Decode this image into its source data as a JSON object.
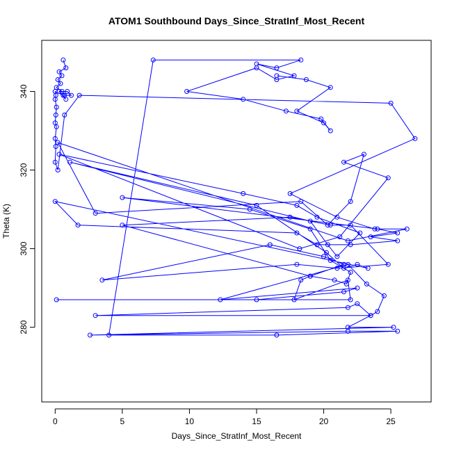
{
  "chart_data": {
    "type": "line",
    "title": "ATOM1 Southbound Days_Since_StratInf_Most_Recent",
    "xlabel": "Days_Since_StratInf_Most_Recent",
    "ylabel": "Theta (K)",
    "xlim": [
      -1,
      28
    ],
    "ylim": [
      261,
      353
    ],
    "xticks": [
      0,
      5,
      10,
      15,
      20,
      25
    ],
    "yticks": [
      280,
      300,
      320,
      340
    ],
    "color": "#0000ff",
    "points": [
      [
        0.6,
        348
      ],
      [
        0.8,
        346
      ],
      [
        0.3,
        345
      ],
      [
        0.5,
        344
      ],
      [
        0.2,
        343
      ],
      [
        0.4,
        342
      ],
      [
        0.1,
        341
      ],
      [
        0.5,
        340
      ],
      [
        0.7,
        339
      ],
      [
        1.2,
        339
      ],
      [
        0.9,
        340
      ],
      [
        0.3,
        340
      ],
      [
        0.8,
        338
      ],
      [
        0.6,
        339
      ],
      [
        0.0,
        340
      ],
      [
        0.05,
        339
      ],
      [
        0.0,
        338
      ],
      [
        0.1,
        336
      ],
      [
        0.05,
        334
      ],
      [
        0.0,
        332
      ],
      [
        0.1,
        331
      ],
      [
        0.0,
        328
      ],
      [
        0.05,
        326
      ],
      [
        0.0,
        322
      ],
      [
        0.2,
        320
      ],
      [
        0.7,
        334
      ],
      [
        1.8,
        339
      ],
      [
        25.0,
        337
      ],
      [
        26.8,
        328
      ],
      [
        17.5,
        314
      ],
      [
        21.0,
        308
      ],
      [
        23.8,
        305
      ],
      [
        26.2,
        305
      ],
      [
        21.8,
        302
      ],
      [
        0.2,
        327
      ],
      [
        3.0,
        309
      ],
      [
        18.3,
        312
      ],
      [
        20.3,
        306
      ],
      [
        22.0,
        312
      ],
      [
        23.0,
        324
      ],
      [
        21.5,
        322
      ],
      [
        24.8,
        318
      ],
      [
        21.2,
        303
      ],
      [
        18.2,
        300
      ],
      [
        0.3,
        324
      ],
      [
        14.0,
        314
      ],
      [
        18.0,
        311
      ],
      [
        19.5,
        308
      ],
      [
        22.7,
        304
      ],
      [
        21.0,
        298
      ],
      [
        20.3,
        301
      ],
      [
        19.0,
        307
      ],
      [
        1.1,
        322
      ],
      [
        15.0,
        311
      ],
      [
        20.2,
        299
      ],
      [
        21.5,
        295
      ],
      [
        22.5,
        296
      ],
      [
        23.3,
        295
      ],
      [
        0.0,
        312
      ],
      [
        1.7,
        306
      ],
      [
        18.0,
        304
      ],
      [
        19.5,
        301
      ],
      [
        22.0,
        301
      ],
      [
        25.5,
        302
      ],
      [
        23.5,
        303
      ],
      [
        25.5,
        304
      ],
      [
        24.0,
        305
      ],
      [
        5.0,
        313
      ],
      [
        14.5,
        310
      ],
      [
        19.0,
        305
      ],
      [
        20.5,
        297
      ],
      [
        22.0,
        294
      ],
      [
        21.7,
        291
      ],
      [
        20.8,
        292
      ],
      [
        19.0,
        293
      ],
      [
        5.0,
        306
      ],
      [
        17.5,
        308
      ],
      [
        20.5,
        306
      ],
      [
        22.0,
        306
      ],
      [
        24.8,
        296
      ],
      [
        21.0,
        295
      ],
      [
        18.0,
        296
      ],
      [
        3.5,
        292
      ],
      [
        16.0,
        301
      ],
      [
        20.0,
        298
      ],
      [
        21.5,
        296
      ],
      [
        19.0,
        293
      ],
      [
        18.3,
        292
      ],
      [
        17.8,
        287
      ],
      [
        21.8,
        292
      ],
      [
        22.0,
        287
      ],
      [
        0.1,
        287
      ],
      [
        15.0,
        287
      ],
      [
        21.5,
        289
      ],
      [
        22.5,
        290
      ],
      [
        12.3,
        287
      ],
      [
        21.8,
        296
      ],
      [
        23.2,
        291
      ],
      [
        24.5,
        288
      ],
      [
        24.0,
        284
      ],
      [
        23.5,
        283
      ],
      [
        22.5,
        286
      ],
      [
        21.8,
        285
      ],
      [
        3.0,
        283
      ],
      [
        23.5,
        283
      ],
      [
        21.8,
        280
      ],
      [
        25.2,
        280
      ],
      [
        2.6,
        278
      ],
      [
        21.8,
        279
      ],
      [
        25.5,
        279
      ],
      [
        16.5,
        278
      ],
      [
        4.0,
        278
      ],
      [
        7.3,
        348
      ],
      [
        18.3,
        348
      ],
      [
        16.5,
        346
      ],
      [
        15.0,
        347
      ],
      [
        17.8,
        344
      ],
      [
        16.5,
        343
      ],
      [
        15.0,
        346
      ],
      [
        9.8,
        340
      ],
      [
        14.0,
        338
      ],
      [
        17.2,
        335
      ],
      [
        19.8,
        333
      ],
      [
        20.5,
        330
      ],
      [
        20.0,
        332
      ],
      [
        18.0,
        335
      ],
      [
        20.5,
        341
      ],
      [
        18.7,
        343
      ],
      [
        16.5,
        344
      ]
    ]
  }
}
